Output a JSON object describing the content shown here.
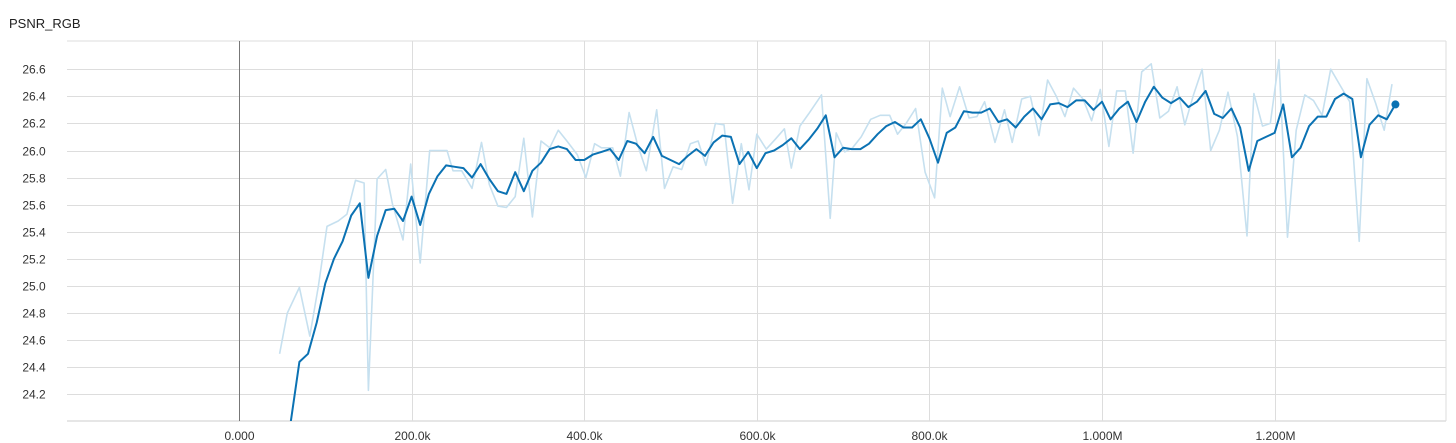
{
  "chart_data": {
    "type": "line",
    "title": "PSNR_RGB",
    "xlabel": "",
    "ylabel": "",
    "xlim": [
      -200000,
      1400000
    ],
    "ylim": [
      24.0,
      26.75
    ],
    "grid": true,
    "x_ticks": [
      0,
      200000,
      400000,
      600000,
      800000,
      1000000,
      1200000
    ],
    "x_tick_labels": [
      "0.000",
      "200.0k",
      "400.0k",
      "600.0k",
      "800.0k",
      "1.000M",
      "1.200M"
    ],
    "y_ticks": [
      24.2,
      24.4,
      24.6,
      24.8,
      25.0,
      25.2,
      25.4,
      25.6,
      25.8,
      26.0,
      26.2,
      26.4,
      26.6
    ],
    "y_tick_labels": [
      "24.2",
      "24.4",
      "24.6",
      "24.8",
      "25.0",
      "25.2",
      "25.4",
      "25.6",
      "25.8",
      "26.0",
      "26.2",
      "26.4",
      "26.6"
    ],
    "colors": {
      "raw": "#c6e0ef",
      "smoothed": "#0b72b3",
      "grid": "#dddddd",
      "zero": "#777777"
    },
    "series": [
      {
        "values": [
          [
            47000,
            24.5
          ],
          [
            56000,
            24.8
          ],
          [
            70000,
            24.99
          ],
          [
            82000,
            24.63
          ],
          [
            92000,
            25.0
          ],
          [
            102000,
            25.44
          ],
          [
            115000,
            25.48
          ],
          [
            125000,
            25.53
          ],
          [
            135000,
            25.78
          ],
          [
            145000,
            25.76
          ],
          [
            150000,
            24.23
          ],
          [
            160000,
            25.79
          ],
          [
            170000,
            25.86
          ],
          [
            178000,
            25.6
          ],
          [
            190000,
            25.34
          ],
          [
            199000,
            25.9
          ],
          [
            210000,
            25.17
          ],
          [
            221000,
            26.0
          ],
          [
            232000,
            26.0
          ],
          [
            241000,
            26.0
          ],
          [
            248000,
            25.85
          ],
          [
            258000,
            25.85
          ],
          [
            270000,
            25.72
          ],
          [
            281000,
            26.06
          ],
          [
            290000,
            25.75
          ],
          [
            300000,
            25.59
          ],
          [
            310000,
            25.58
          ],
          [
            320000,
            25.66
          ],
          [
            330000,
            26.09
          ],
          [
            340000,
            25.51
          ],
          [
            350000,
            26.07
          ],
          [
            360000,
            26.02
          ],
          [
            370000,
            26.15
          ],
          [
            380000,
            26.07
          ],
          [
            392000,
            25.97
          ],
          [
            402000,
            25.8
          ],
          [
            412000,
            26.05
          ],
          [
            420000,
            26.02
          ],
          [
            433000,
            26.02
          ],
          [
            442000,
            25.81
          ],
          [
            452000,
            26.28
          ],
          [
            462000,
            26.04
          ],
          [
            472000,
            25.85
          ],
          [
            484000,
            26.3
          ],
          [
            493000,
            25.72
          ],
          [
            503000,
            25.88
          ],
          [
            513000,
            25.86
          ],
          [
            523000,
            26.05
          ],
          [
            532000,
            26.07
          ],
          [
            541000,
            25.89
          ],
          [
            552000,
            26.2
          ],
          [
            562000,
            26.19
          ],
          [
            572000,
            25.61
          ],
          [
            582000,
            26.05
          ],
          [
            591000,
            25.71
          ],
          [
            600000,
            26.12
          ],
          [
            611000,
            26.01
          ],
          [
            621000,
            26.08
          ],
          [
            632000,
            26.16
          ],
          [
            640000,
            25.87
          ],
          [
            650000,
            26.18
          ],
          [
            660000,
            26.27
          ],
          [
            675000,
            26.41
          ],
          [
            685000,
            25.5
          ],
          [
            692000,
            26.13
          ],
          [
            702000,
            25.99
          ],
          [
            711000,
            26.02
          ],
          [
            721000,
            26.1
          ],
          [
            732000,
            26.23
          ],
          [
            743000,
            26.26
          ],
          [
            754000,
            26.26
          ],
          [
            763000,
            26.12
          ],
          [
            773000,
            26.2
          ],
          [
            784000,
            26.31
          ],
          [
            795000,
            25.84
          ],
          [
            806000,
            25.65
          ],
          [
            815000,
            26.46
          ],
          [
            824000,
            26.25
          ],
          [
            835000,
            26.47
          ],
          [
            846000,
            26.24
          ],
          [
            855000,
            26.25
          ],
          [
            864000,
            26.36
          ],
          [
            876000,
            26.06
          ],
          [
            887000,
            26.3
          ],
          [
            896000,
            26.06
          ],
          [
            907000,
            26.38
          ],
          [
            917000,
            26.4
          ],
          [
            927000,
            26.11
          ],
          [
            937000,
            26.52
          ],
          [
            947000,
            26.4
          ],
          [
            957000,
            26.25
          ],
          [
            967000,
            26.46
          ],
          [
            978000,
            26.38
          ],
          [
            988000,
            26.22
          ],
          [
            998000,
            26.45
          ],
          [
            1008000,
            26.03
          ],
          [
            1017000,
            26.44
          ],
          [
            1027000,
            26.44
          ],
          [
            1036000,
            25.98
          ],
          [
            1046000,
            26.58
          ],
          [
            1057000,
            26.64
          ],
          [
            1067000,
            26.24
          ],
          [
            1077000,
            26.29
          ],
          [
            1087000,
            26.47
          ],
          [
            1096000,
            26.19
          ],
          [
            1106000,
            26.41
          ],
          [
            1116000,
            26.6
          ],
          [
            1126000,
            26.0
          ],
          [
            1136000,
            26.15
          ],
          [
            1146000,
            26.43
          ],
          [
            1157000,
            26.1
          ],
          [
            1168000,
            25.37
          ],
          [
            1176000,
            26.42
          ],
          [
            1186000,
            26.18
          ],
          [
            1195000,
            26.2
          ],
          [
            1205000,
            26.67
          ],
          [
            1215000,
            25.36
          ],
          [
            1225000,
            26.15
          ],
          [
            1235000,
            26.41
          ],
          [
            1245000,
            26.37
          ],
          [
            1255000,
            26.26
          ],
          [
            1265000,
            26.6
          ],
          [
            1276000,
            26.48
          ],
          [
            1287000,
            26.36
          ],
          [
            1298000,
            25.33
          ],
          [
            1307000,
            26.53
          ],
          [
            1317000,
            26.35
          ],
          [
            1327000,
            26.15
          ],
          [
            1336000,
            26.49
          ]
        ]
      },
      {
        "values": [
          [
            60000,
            24.0
          ],
          [
            70000,
            24.44
          ],
          [
            80000,
            24.5
          ],
          [
            90000,
            24.73
          ],
          [
            100000,
            25.02
          ],
          [
            110000,
            25.2
          ],
          [
            120000,
            25.33
          ],
          [
            130000,
            25.52
          ],
          [
            140000,
            25.61
          ],
          [
            150000,
            25.06
          ],
          [
            160000,
            25.37
          ],
          [
            170000,
            25.56
          ],
          [
            180000,
            25.57
          ],
          [
            190000,
            25.48
          ],
          [
            200000,
            25.66
          ],
          [
            210000,
            25.45
          ],
          [
            220000,
            25.68
          ],
          [
            230000,
            25.81
          ],
          [
            240000,
            25.89
          ],
          [
            250000,
            25.88
          ],
          [
            260000,
            25.87
          ],
          [
            270000,
            25.8
          ],
          [
            280000,
            25.9
          ],
          [
            290000,
            25.79
          ],
          [
            300000,
            25.7
          ],
          [
            310000,
            25.68
          ],
          [
            320000,
            25.84
          ],
          [
            330000,
            25.7
          ],
          [
            340000,
            25.85
          ],
          [
            350000,
            25.91
          ],
          [
            360000,
            26.01
          ],
          [
            370000,
            26.03
          ],
          [
            380000,
            26.01
          ],
          [
            390000,
            25.93
          ],
          [
            400000,
            25.93
          ],
          [
            410000,
            25.97
          ],
          [
            420000,
            25.99
          ],
          [
            430000,
            26.01
          ],
          [
            440000,
            25.93
          ],
          [
            450000,
            26.07
          ],
          [
            460000,
            26.05
          ],
          [
            470000,
            25.98
          ],
          [
            480000,
            26.1
          ],
          [
            490000,
            25.96
          ],
          [
            500000,
            25.93
          ],
          [
            510000,
            25.9
          ],
          [
            520000,
            25.96
          ],
          [
            530000,
            26.01
          ],
          [
            540000,
            25.96
          ],
          [
            550000,
            26.06
          ],
          [
            560000,
            26.11
          ],
          [
            570000,
            26.1
          ],
          [
            580000,
            25.9
          ],
          [
            590000,
            25.99
          ],
          [
            600000,
            25.87
          ],
          [
            610000,
            25.98
          ],
          [
            620000,
            26.0
          ],
          [
            630000,
            26.04
          ],
          [
            640000,
            26.09
          ],
          [
            650000,
            26.01
          ],
          [
            660000,
            26.08
          ],
          [
            670000,
            26.16
          ],
          [
            680000,
            26.26
          ],
          [
            690000,
            25.95
          ],
          [
            700000,
            26.02
          ],
          [
            710000,
            26.01
          ],
          [
            720000,
            26.01
          ],
          [
            730000,
            26.05
          ],
          [
            740000,
            26.12
          ],
          [
            750000,
            26.18
          ],
          [
            760000,
            26.21
          ],
          [
            770000,
            26.17
          ],
          [
            780000,
            26.17
          ],
          [
            790000,
            26.23
          ],
          [
            800000,
            26.09
          ],
          [
            810000,
            25.91
          ],
          [
            820000,
            26.13
          ],
          [
            830000,
            26.17
          ],
          [
            840000,
            26.29
          ],
          [
            850000,
            26.28
          ],
          [
            860000,
            26.28
          ],
          [
            870000,
            26.31
          ],
          [
            880000,
            26.21
          ],
          [
            890000,
            26.23
          ],
          [
            900000,
            26.17
          ],
          [
            910000,
            26.25
          ],
          [
            920000,
            26.31
          ],
          [
            930000,
            26.23
          ],
          [
            940000,
            26.34
          ],
          [
            950000,
            26.35
          ],
          [
            960000,
            26.32
          ],
          [
            970000,
            26.37
          ],
          [
            980000,
            26.37
          ],
          [
            990000,
            26.3
          ],
          [
            1000000,
            26.36
          ],
          [
            1010000,
            26.23
          ],
          [
            1020000,
            26.31
          ],
          [
            1030000,
            26.36
          ],
          [
            1040000,
            26.21
          ],
          [
            1050000,
            26.36
          ],
          [
            1060000,
            26.47
          ],
          [
            1070000,
            26.39
          ],
          [
            1080000,
            26.35
          ],
          [
            1090000,
            26.39
          ],
          [
            1100000,
            26.32
          ],
          [
            1110000,
            26.36
          ],
          [
            1120000,
            26.44
          ],
          [
            1130000,
            26.27
          ],
          [
            1140000,
            26.24
          ],
          [
            1150000,
            26.31
          ],
          [
            1160000,
            26.17
          ],
          [
            1170000,
            25.85
          ],
          [
            1180000,
            26.07
          ],
          [
            1190000,
            26.1
          ],
          [
            1200000,
            26.13
          ],
          [
            1210000,
            26.34
          ],
          [
            1220000,
            25.95
          ],
          [
            1230000,
            26.02
          ],
          [
            1240000,
            26.18
          ],
          [
            1250000,
            26.25
          ],
          [
            1260000,
            26.25
          ],
          [
            1270000,
            26.38
          ],
          [
            1280000,
            26.42
          ],
          [
            1290000,
            26.38
          ],
          [
            1300000,
            25.95
          ],
          [
            1310000,
            26.19
          ],
          [
            1320000,
            26.26
          ],
          [
            1330000,
            26.23
          ],
          [
            1340000,
            26.34
          ]
        ]
      }
    ]
  }
}
